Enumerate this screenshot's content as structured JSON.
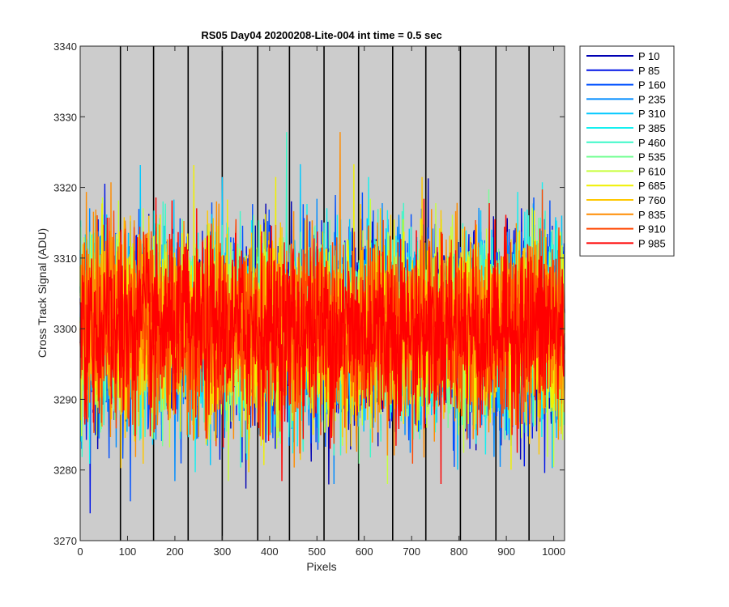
{
  "chart_data": {
    "type": "line",
    "title": "RS05 Day04 20200208-Lite-004 int time = 0.5 sec",
    "xlabel": "Pixels",
    "ylabel": "Cross Track Signal (ADU)",
    "xlim": [
      0,
      1023
    ],
    "ylim": [
      3270,
      3340
    ],
    "xticks": [
      0,
      100,
      200,
      300,
      400,
      500,
      600,
      700,
      800,
      900,
      1000
    ],
    "yticks": [
      3270,
      3280,
      3290,
      3300,
      3310,
      3320,
      3330,
      3340
    ],
    "background_color": "#cccccc",
    "grid": false,
    "vertical_markers": [
      85,
      155,
      228,
      300,
      375,
      442,
      515,
      588,
      660,
      730,
      803,
      878,
      948
    ],
    "legend_position": "outside-right",
    "signal": {
      "mean": 3300,
      "std": 6.5,
      "points": 1024
    },
    "series": [
      {
        "name": "P 10",
        "color": "#0000b4"
      },
      {
        "name": "P 85",
        "color": "#0014e6"
      },
      {
        "name": "P 160",
        "color": "#0050ff"
      },
      {
        "name": "P 235",
        "color": "#008cff"
      },
      {
        "name": "P 310",
        "color": "#00c8ff"
      },
      {
        "name": "P 385",
        "color": "#14f0f0"
      },
      {
        "name": "P 460",
        "color": "#3cf8c8"
      },
      {
        "name": "P 535",
        "color": "#78ff96"
      },
      {
        "name": "P 610",
        "color": "#c8ff3c"
      },
      {
        "name": "P 685",
        "color": "#f0f000"
      },
      {
        "name": "P 760",
        "color": "#ffc800"
      },
      {
        "name": "P 835",
        "color": "#ff8c00"
      },
      {
        "name": "P 910",
        "color": "#ff4600"
      },
      {
        "name": "P 985",
        "color": "#ff0000"
      }
    ]
  }
}
